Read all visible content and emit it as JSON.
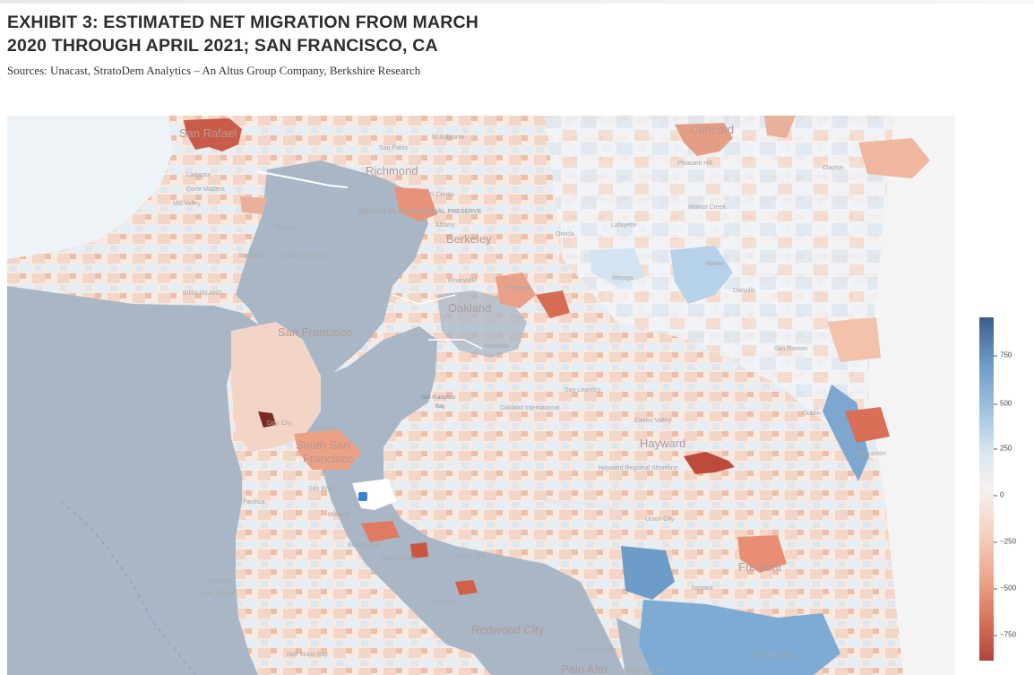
{
  "exhibit": {
    "title_line1": "EXHIBIT 3: ESTIMATED NET MIGRATION FROM MARCH",
    "title_line2": "2020 THROUGH APRIL 2021; SAN FRANCISCO, CA",
    "sources": "Sources: Unacast, StratoDem Analytics – An Altus Group Company, Berkshire Research"
  },
  "map": {
    "place_labels": {
      "san_rafael": "San Rafael",
      "concord": "Concord",
      "richmond": "Richmond",
      "berkeley": "Berkeley",
      "oakland": "Oakland",
      "san_francisco": "San Francisco",
      "south_san_francisco_1": "South San",
      "south_san_francisco_2": "Francisco",
      "hayward": "Hayward",
      "fremont": "Fremont",
      "redwood_city": "Redwood City",
      "palo_alto": "Palo Alto",
      "san_pablo": "San Pablo",
      "el_sobrante": "El Sobrante",
      "pleasant_hill": "Pleasant Hill",
      "clayton": "Clayton",
      "larkspur": "Larkspur",
      "corte_madera": "Corte Madera",
      "mill_valley": "Mill Valley",
      "tiburon": "Tiburon",
      "sausalito": "Sausalito",
      "angel_island": "ANGEL ISLAND",
      "bird_island": "BIRD ISLAND",
      "el_cerrito": "El Cerrito",
      "albany": "Albany",
      "orinda": "Orinda",
      "lafayette": "Lafayette",
      "walnut_creek": "Walnut Creek",
      "alamo": "Alamo",
      "danville": "Danville",
      "moraga": "Moraga",
      "piedmont": "Piedmont",
      "alameda": "Alameda",
      "emeryville": "Emeryville",
      "san_leandro": "San Leandro",
      "castro_valley": "Castro Valley",
      "san_ramon": "San Ramon",
      "dublin": "Dublin",
      "pleasanton": "Pleasanton",
      "union_city": "Union City",
      "newark": "Newark",
      "foster_city": "Foster City",
      "belmont": "Belmont",
      "hillsborough": "Hillsborough",
      "burlingame": "Burlingame",
      "millbrae": "Millbrae",
      "san_bruno": "San Bruno",
      "pacifica": "Pacifica",
      "montara": "Montara",
      "moss_beach": "Moss Beach",
      "half_moon_bay": "Half Moon Bay",
      "east_palo_alto": "East Palo Alto",
      "daly_city": "Daly City",
      "brisbane": "Brisbane",
      "east_bay_preserve": "BROOKS ISLAND REGIONAL PRESERVE",
      "sf_bay_1": "San Francisco",
      "sf_bay_2": "Bay",
      "oakland_airport": "Oakland International",
      "hayward_shoreline": "Hayward Regional Shoreline",
      "coyote_hills": "COYOTE HILLS",
      "bair_island": "BAIR ISLAND"
    },
    "colorbar": {
      "ticks": [
        "750",
        "500",
        "250",
        "0",
        "−250",
        "−500",
        "−750"
      ],
      "max_color": "#3b5f8a",
      "zero_color": "#f6f1ee",
      "min_color": "#b0463d"
    },
    "colors": {
      "water": "#a8b6c6",
      "land_base": "#f9ede6",
      "ocean_line": "#8e9db0"
    }
  }
}
